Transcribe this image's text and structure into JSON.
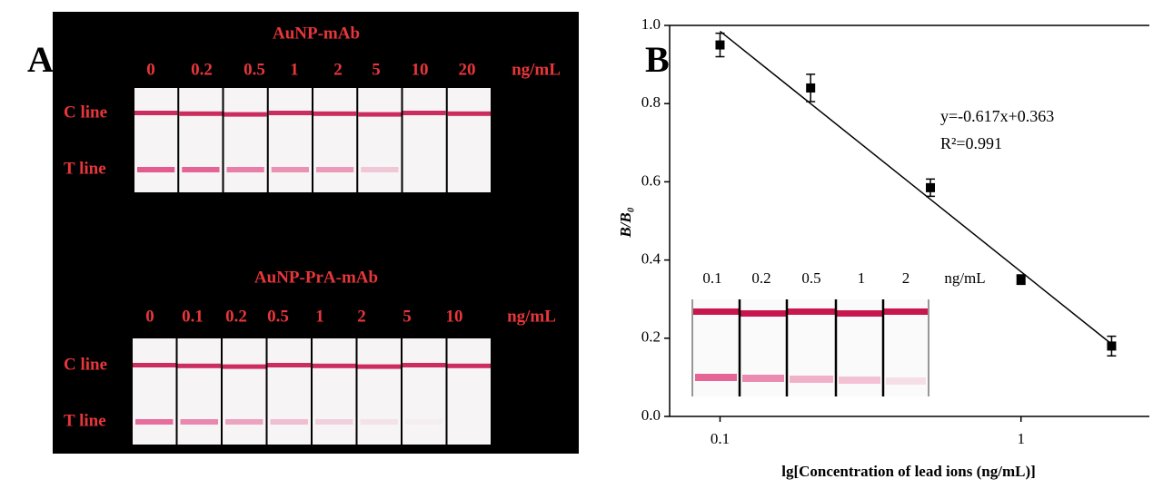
{
  "panel_a": {
    "label": "A",
    "top": {
      "title": "AuNP-mAb",
      "concentrations": [
        "0",
        "0.2",
        "0.5",
        "1",
        "2",
        "5",
        "10",
        "20"
      ],
      "unit": "ng/mL",
      "c_line": "C line",
      "t_line": "T line"
    },
    "bottom": {
      "title": "AuNP-PrA-mAb",
      "concentrations": [
        "0",
        "0.1",
        "0.2",
        "0.5",
        "1",
        "2",
        "5",
        "10"
      ],
      "unit": "ng/mL",
      "c_line": "C line",
      "t_line": "T line"
    }
  },
  "chart_data": {
    "type": "scatter",
    "panel_label": "B",
    "x_label": "lg[Concentration of lead ions (ng/mL)]",
    "y_label": "B/B₀",
    "x": [
      0.1,
      0.2,
      0.5,
      1,
      2
    ],
    "y": [
      0.95,
      0.84,
      0.585,
      0.35,
      0.18
    ],
    "errors": [
      0.03,
      0.035,
      0.022,
      0.012,
      0.025
    ],
    "color": "#000000",
    "xscale": "log",
    "xlim": [
      0.068,
      2.67
    ],
    "ylim": [
      0,
      1
    ],
    "xticks": [
      0.1,
      1
    ],
    "yticks": [
      {
        "value": 0,
        "label": "0.0"
      },
      0.2,
      0.4,
      0.6,
      0.8,
      {
        "value": 1,
        "label": "1.0"
      }
    ],
    "fit_line": {
      "x": [
        0.1,
        2
      ],
      "y": [
        0.985,
        0.185
      ]
    },
    "annotations": [
      "y=-0.617x+0.363",
      "R²=0.991"
    ],
    "inset": {
      "concentrations": [
        "0.1",
        "0.2",
        "0.5",
        "1",
        "2"
      ],
      "unit": "ng/mL"
    }
  }
}
